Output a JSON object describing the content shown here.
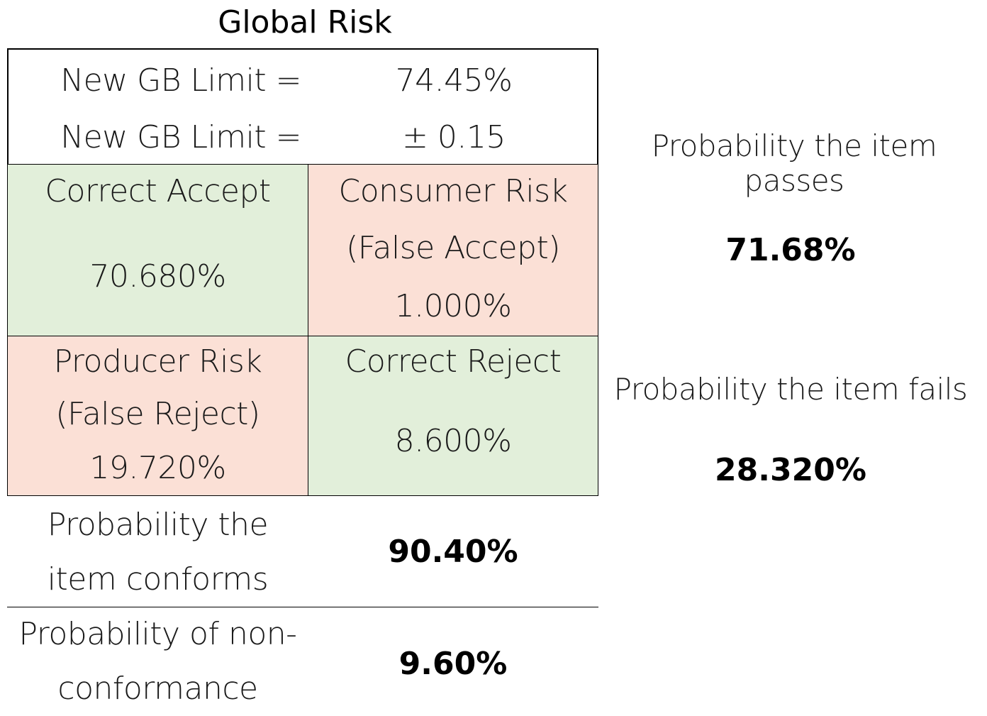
{
  "title": "Global Risk",
  "limits": [
    {
      "label": "New GB Limit =",
      "value": "74.45%"
    },
    {
      "label": "New GB Limit =",
      "value": "± 0.15"
    }
  ],
  "matrix": {
    "correct_accept": {
      "label": "Correct Accept",
      "value": "70.680%"
    },
    "consumer_risk": {
      "label": "Consumer Risk",
      "sublabel": "(False Accept)",
      "value": "1.000%"
    },
    "producer_risk": {
      "label": "Producer Risk",
      "sublabel": "(False Reject)",
      "value": "19.720%"
    },
    "correct_reject": {
      "label": "Correct Reject",
      "value": "8.600%"
    }
  },
  "side": {
    "passes": {
      "label": "Probability the item passes",
      "value": "71.68%"
    },
    "fails": {
      "label": "Probability the item fails",
      "value": "28.320%"
    }
  },
  "bottom": {
    "conforms": {
      "label_line1": "Probability the",
      "label_line2": "item conforms",
      "value": "90.40%"
    },
    "nonconform": {
      "label_line1": "Probability of non-",
      "label_line2": "conformance",
      "value": "9.60%"
    }
  },
  "colors": {
    "accept_fill": "#e2efda",
    "risk_fill": "#fbe0d6"
  }
}
